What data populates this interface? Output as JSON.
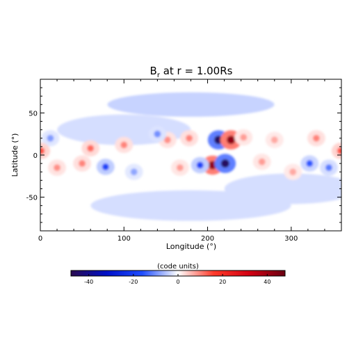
{
  "chart_data": {
    "type": "heatmap",
    "title_main": "B",
    "title_sub": "r",
    "title_rest": " at r = 1.00Rs",
    "xlabel": "Longitude (°)",
    "ylabel": "Latitude (°)",
    "xlim": [
      0,
      360
    ],
    "ylim": [
      -90,
      90
    ],
    "xticks": [
      0,
      100,
      200,
      300
    ],
    "yticks": [
      -50,
      0,
      50
    ],
    "colorbar": {
      "label": "(code units)",
      "range": [
        -48,
        48
      ],
      "ticks": [
        -40,
        -20,
        0,
        20,
        40
      ],
      "colormap": [
        "#2a0a4f",
        "#0010c8",
        "#1f4dff",
        "#ffffff",
        "#ff3a2a",
        "#d20012",
        "#6a0012"
      ]
    },
    "field_blobs": [
      {
        "lon": 213,
        "lat": 18,
        "value": -46
      },
      {
        "lon": 228,
        "lat": 18,
        "value": 42
      },
      {
        "lon": 206,
        "lat": -12,
        "value": 42
      },
      {
        "lon": 221,
        "lat": -10,
        "value": -46
      },
      {
        "lon": 191,
        "lat": -12,
        "value": -18
      },
      {
        "lon": 178,
        "lat": 20,
        "value": 10
      },
      {
        "lon": 152,
        "lat": 18,
        "value": 9
      },
      {
        "lon": 140,
        "lat": 25,
        "value": -10
      },
      {
        "lon": 243,
        "lat": 21,
        "value": 8
      },
      {
        "lon": 78,
        "lat": -14,
        "value": -18
      },
      {
        "lon": 60,
        "lat": 8,
        "value": 12
      },
      {
        "lon": 50,
        "lat": -10,
        "value": 10
      },
      {
        "lon": 20,
        "lat": -15,
        "value": 9
      },
      {
        "lon": 12,
        "lat": 20,
        "value": -9
      },
      {
        "lon": 100,
        "lat": 12,
        "value": 10
      },
      {
        "lon": 265,
        "lat": -8,
        "value": 8
      },
      {
        "lon": 280,
        "lat": 18,
        "value": 7
      },
      {
        "lon": 302,
        "lat": -20,
        "value": 7
      },
      {
        "lon": 330,
        "lat": 20,
        "value": 10
      },
      {
        "lon": 345,
        "lat": -15,
        "value": -12
      },
      {
        "lon": 322,
        "lat": -10,
        "value": -15
      },
      {
        "lon": 1,
        "lat": 5,
        "value": 14
      },
      {
        "lon": 359,
        "lat": 5,
        "value": 14
      },
      {
        "lon": 167,
        "lat": -15,
        "value": 8
      },
      {
        "lon": 112,
        "lat": -20,
        "value": -8
      }
    ]
  }
}
